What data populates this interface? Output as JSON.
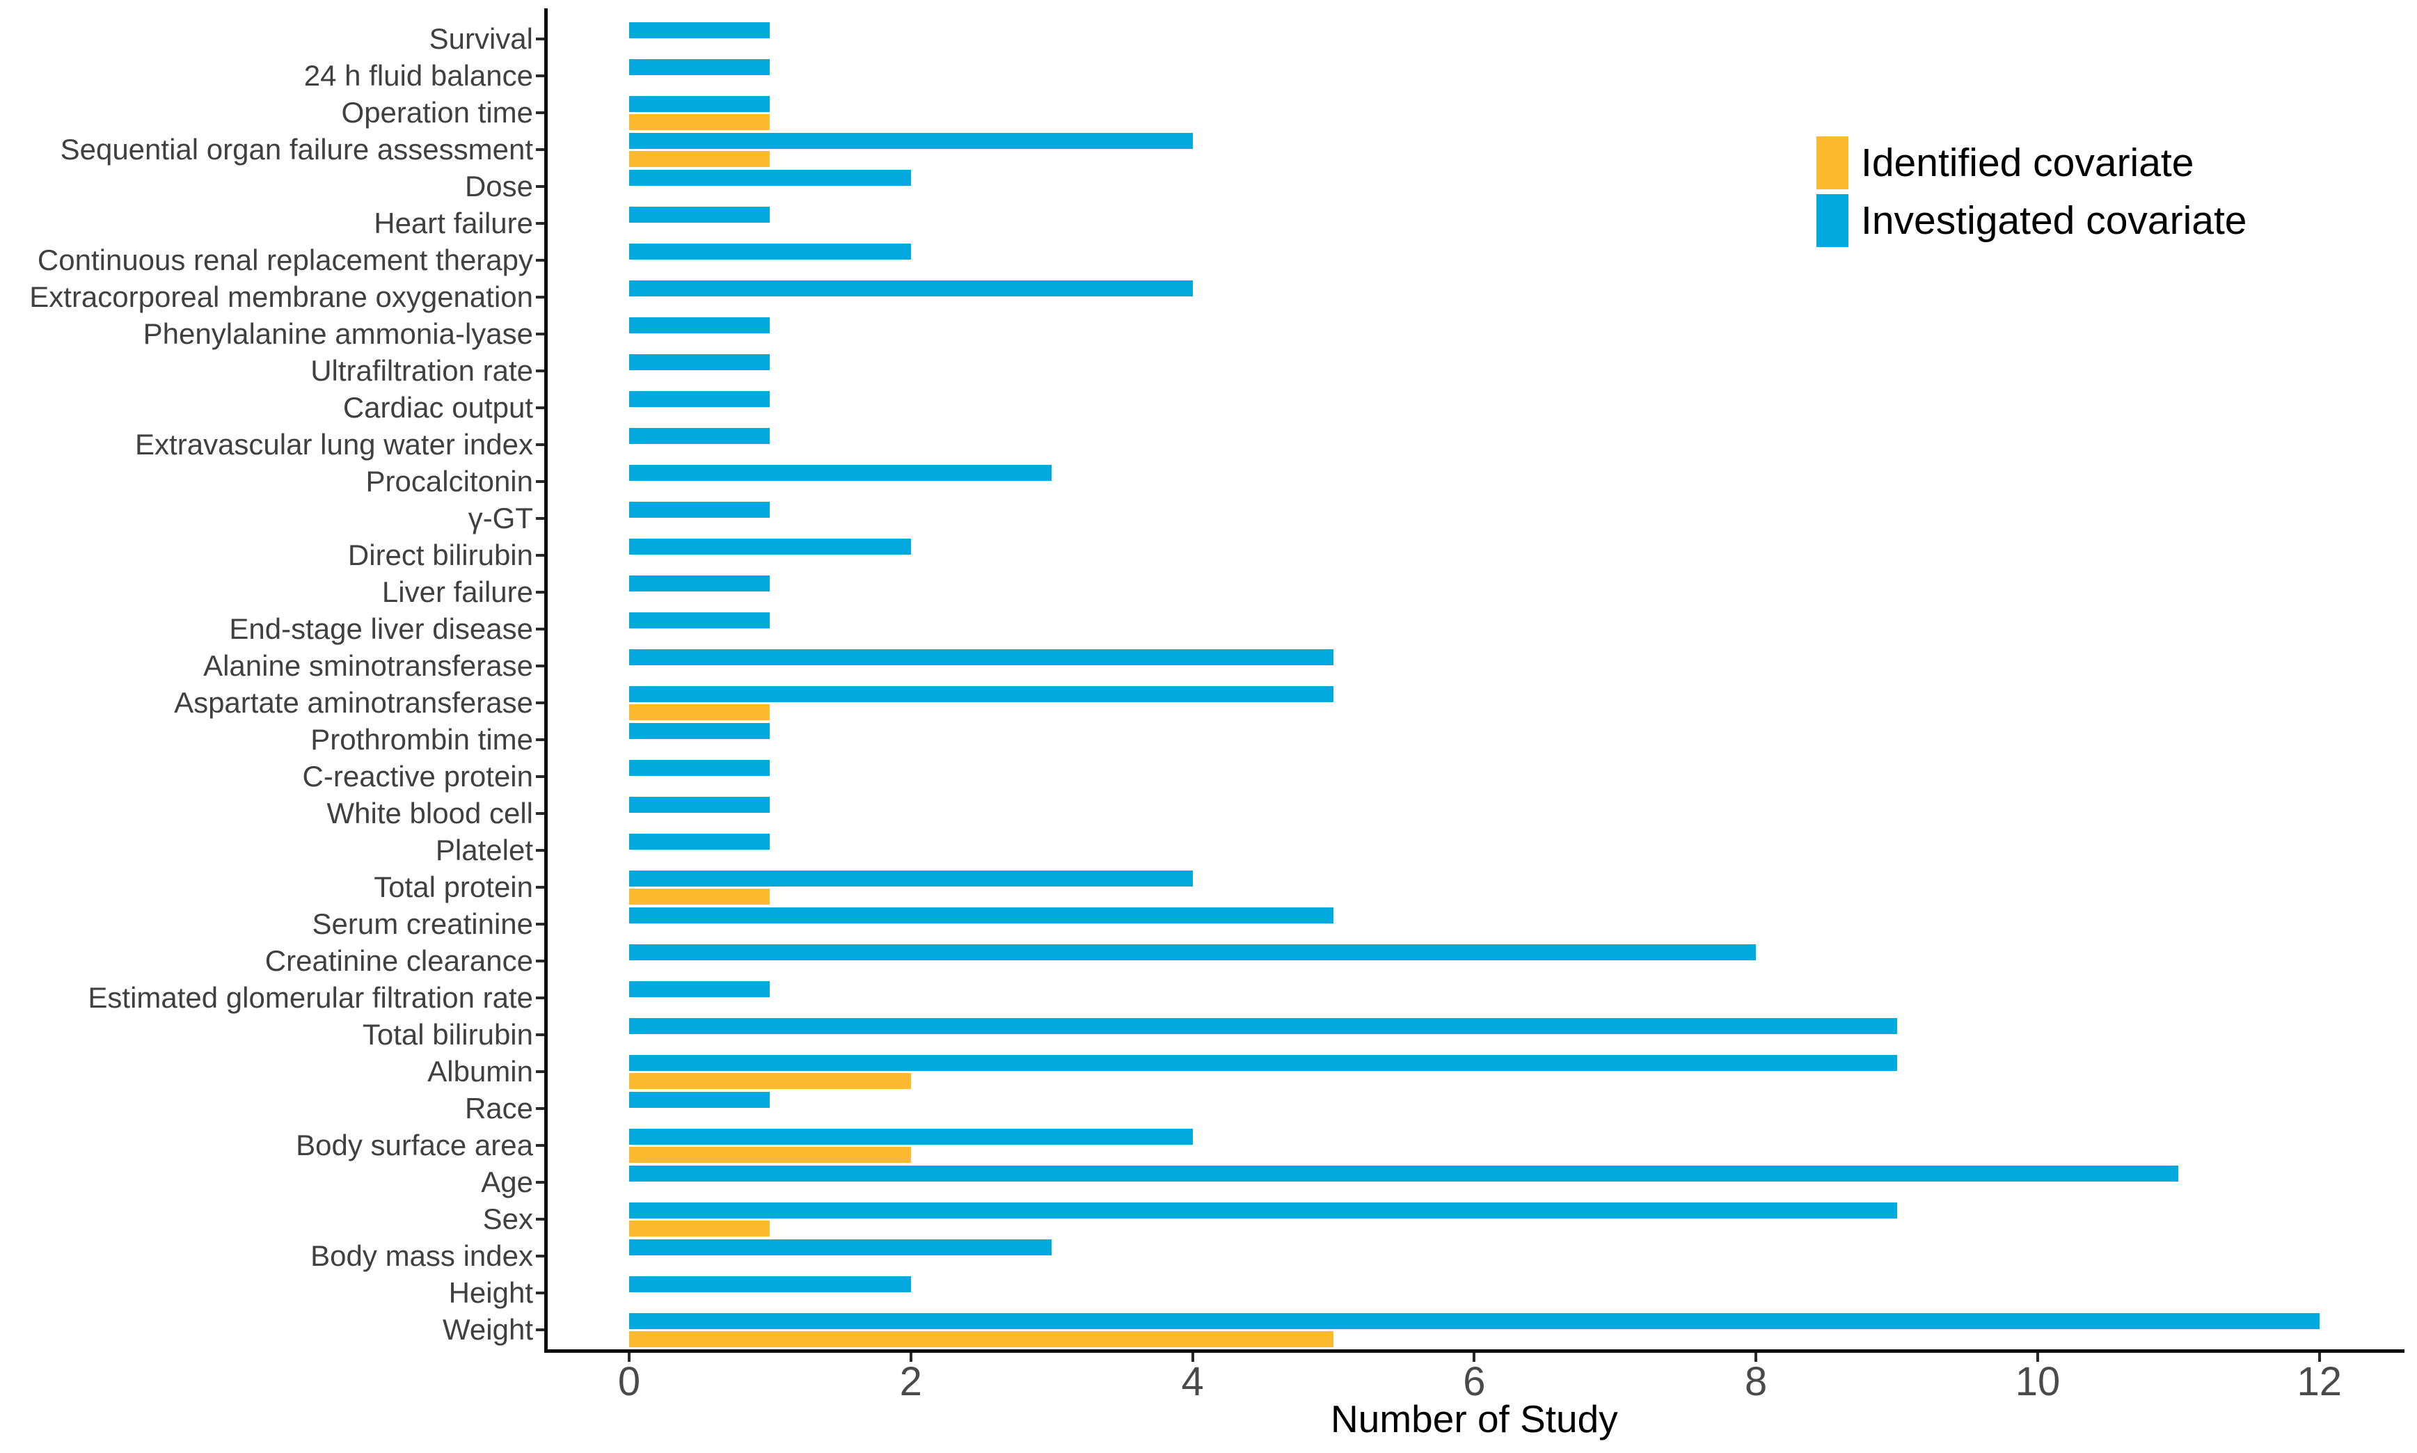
{
  "figure": {
    "background": "#ffffff",
    "legend": {
      "identified_label": "Identified covariate",
      "investigated_label": "Investigated covariate"
    },
    "colors": {
      "identified": "#FDB92F",
      "investigated": "#00A9DE",
      "axis_line": "#0e0e0e",
      "category_text": "#404040",
      "tick_text": "#4a4a4a",
      "title_text": "#000000"
    }
  },
  "chart_data": {
    "type": "bar",
    "orientation": "horizontal",
    "title": "",
    "xlabel": "Number of Study",
    "ylabel": "",
    "xlim": [
      0,
      12.5
    ],
    "x_ticks": [
      0,
      2,
      4,
      6,
      8,
      10,
      12
    ],
    "grid": false,
    "legend_position": "top-right",
    "categories": [
      "Survival",
      "24 h fluid balance",
      "Operation time",
      "Sequential organ failure assessment",
      "Dose",
      "Heart failure",
      "Continuous renal replacement therapy",
      "Extracorporeal membrane oxygenation",
      "Phenylalanine ammonia-lyase",
      "Ultrafiltration rate",
      "Cardiac output",
      "Extravascular lung water index",
      "Procalcitonin",
      "γ-GT",
      "Direct bilirubin",
      "Liver failure",
      "End-stage liver disease",
      "Alanine sminotransferase",
      "Aspartate aminotransferase",
      "Prothrombin time",
      "C-reactive protein",
      "White blood cell",
      "Platelet",
      "Total protein",
      "Serum creatinine",
      "Creatinine clearance",
      "Estimated glomerular filtration rate",
      "Total bilirubin",
      "Albumin",
      "Race",
      "Body surface area",
      "Age",
      "Sex",
      "Body mass index",
      "Height",
      "Weight"
    ],
    "series": [
      {
        "name": "Identified covariate",
        "color": "#FDB92F",
        "values": [
          null,
          null,
          1,
          1,
          null,
          null,
          null,
          null,
          null,
          null,
          null,
          null,
          null,
          null,
          null,
          null,
          null,
          null,
          1,
          null,
          null,
          null,
          null,
          1,
          null,
          null,
          null,
          null,
          2,
          null,
          2,
          null,
          1,
          null,
          null,
          5
        ]
      },
      {
        "name": "Investigated covariate",
        "color": "#00A9DE",
        "values": [
          1,
          1,
          1,
          4,
          2,
          1,
          2,
          4,
          1,
          1,
          1,
          1,
          3,
          1,
          2,
          1,
          1,
          5,
          5,
          1,
          1,
          1,
          1,
          4,
          5,
          8,
          1,
          9,
          9,
          1,
          4,
          11,
          9,
          3,
          2,
          12
        ]
      }
    ]
  }
}
